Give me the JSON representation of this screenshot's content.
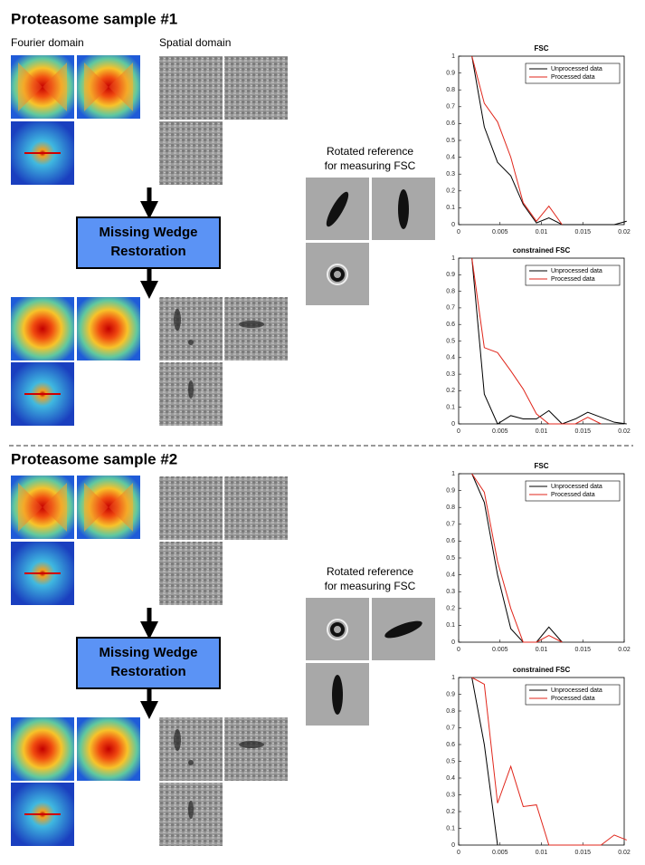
{
  "figure": {
    "sections": [
      {
        "title": "Proteasome sample #1",
        "fourier_label": "Fourier domain",
        "spatial_label": "Spatial domain",
        "box_text": [
          "Missing Wedge",
          "Restoration"
        ],
        "reference_label": [
          "Rotated reference",
          "for measuring FSC"
        ]
      },
      {
        "title": "Proteasome sample #2",
        "box_text": [
          "Missing Wedge",
          "Restoration"
        ],
        "reference_label": [
          "Rotated reference",
          "for measuring FSC"
        ]
      }
    ]
  },
  "chart_data": [
    {
      "type": "line",
      "title": "FSC",
      "x": [
        0.0016,
        0.0031,
        0.0047,
        0.0063,
        0.0078,
        0.0094,
        0.0109,
        0.0125,
        0.0141,
        0.0156,
        0.0172,
        0.0188,
        0.0203
      ],
      "series": [
        {
          "name": "Unprocessed data",
          "color": "#000000",
          "values": [
            1,
            0.58,
            0.37,
            0.29,
            0.12,
            0.01,
            0.04,
            0,
            0,
            0,
            0,
            0,
            0.02
          ]
        },
        {
          "name": "Processed data",
          "color": "#e0261b",
          "values": [
            1,
            0.72,
            0.61,
            0.4,
            0.13,
            0.02,
            0.11,
            0,
            null,
            null,
            null,
            null,
            null
          ]
        }
      ],
      "xlim": [
        0,
        0.02
      ],
      "ylim": [
        0,
        1
      ],
      "xticks": [
        0,
        0.005,
        0.01,
        0.015,
        0.02
      ],
      "yticks": [
        0,
        0.1,
        0.2,
        0.3,
        0.4,
        0.5,
        0.6,
        0.7,
        0.8,
        0.9,
        1
      ],
      "grid": false,
      "legend": "upper right"
    },
    {
      "type": "line",
      "title": "constrained FSC",
      "x": [
        0.0016,
        0.0031,
        0.0047,
        0.0063,
        0.0078,
        0.0094,
        0.0109,
        0.0125,
        0.0141,
        0.0156,
        0.0172,
        0.0188,
        0.0203
      ],
      "series": [
        {
          "name": "Unprocessed data",
          "color": "#000000",
          "values": [
            1,
            0.18,
            0,
            0.05,
            0.03,
            0.03,
            0.08,
            0,
            0.03,
            0.07,
            0.04,
            0.01,
            0
          ]
        },
        {
          "name": "Processed data",
          "color": "#e0261b",
          "values": [
            1,
            0.46,
            0.43,
            0.32,
            0.21,
            0.06,
            0,
            0,
            0,
            0.04,
            0,
            null,
            null
          ]
        }
      ],
      "xlim": [
        0,
        0.02
      ],
      "ylim": [
        0,
        1
      ],
      "xticks": [
        0,
        0.005,
        0.01,
        0.015,
        0.02
      ],
      "yticks": [
        0,
        0.1,
        0.2,
        0.3,
        0.4,
        0.5,
        0.6,
        0.7,
        0.8,
        0.9,
        1
      ],
      "grid": false,
      "legend": "upper right"
    },
    {
      "type": "line",
      "title": "FSC",
      "x": [
        0.0016,
        0.0031,
        0.0047,
        0.0063,
        0.0078,
        0.0094,
        0.0109,
        0.0125
      ],
      "series": [
        {
          "name": "Unprocessed data",
          "color": "#000000",
          "values": [
            1,
            0.83,
            0.4,
            0.08,
            0,
            0,
            0.09,
            0
          ]
        },
        {
          "name": "Processed data",
          "color": "#e0261b",
          "values": [
            1,
            0.89,
            0.48,
            0.2,
            0,
            0,
            0.04,
            0
          ]
        }
      ],
      "xlim": [
        0,
        0.02
      ],
      "ylim": [
        0,
        1
      ],
      "xticks": [
        0,
        0.005,
        0.01,
        0.015,
        0.02
      ],
      "yticks": [
        0,
        0.1,
        0.2,
        0.3,
        0.4,
        0.5,
        0.6,
        0.7,
        0.8,
        0.9,
        1
      ],
      "grid": false,
      "legend": "upper right"
    },
    {
      "type": "line",
      "title": "constrained FSC",
      "x": [
        0.0016,
        0.0031,
        0.0047,
        0.0063,
        0.0078,
        0.0094,
        0.0109,
        0.0125,
        0.0141,
        0.0156,
        0.0172,
        0.0188,
        0.0203
      ],
      "series": [
        {
          "name": "Unprocessed data",
          "color": "#000000",
          "values": [
            1,
            0.6,
            0,
            null,
            null,
            null,
            null,
            null,
            null,
            null,
            null,
            null,
            null
          ]
        },
        {
          "name": "Processed data",
          "color": "#e0261b",
          "values": [
            1,
            0.96,
            0.25,
            0.47,
            0.23,
            0.24,
            0,
            0,
            0,
            0,
            0,
            0.06,
            0.03
          ]
        }
      ],
      "xlim": [
        0,
        0.02
      ],
      "ylim": [
        0,
        1
      ],
      "xticks": [
        0,
        0.005,
        0.01,
        0.015,
        0.02
      ],
      "yticks": [
        0,
        0.1,
        0.2,
        0.3,
        0.4,
        0.5,
        0.6,
        0.7,
        0.8,
        0.9,
        1
      ],
      "grid": false,
      "legend": "upper right"
    }
  ]
}
